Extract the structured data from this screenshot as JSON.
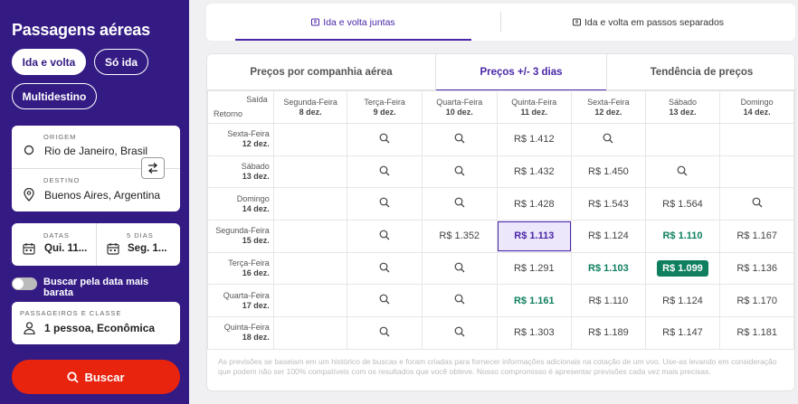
{
  "sidebar": {
    "title": "Passagens aéreas",
    "trip_types": [
      "Ida e volta",
      "Só ida",
      "Multidestino"
    ],
    "origin_label": "ORIGEM",
    "origin_value": "Rio de Janeiro, Brasil",
    "destination_label": "DESTINO",
    "destination_value": "Buenos Aires, Argentina",
    "dates_label": "DATAS",
    "dates_value": "Qui. 11...",
    "days_label": "5 DIAS",
    "days_value": "Seg. 1...",
    "flexible_label": "Buscar pela data mais barata",
    "passengers_label": "PASSAGEIROS E CLASSE",
    "passengers_value": "1 pessoa, Econômica",
    "search_button": "Buscar",
    "accent_color": "#341b84",
    "search_color": "#e8240f"
  },
  "top_tabs": [
    {
      "label": "Ida e volta juntas",
      "icon": "ticket-icon",
      "active": true
    },
    {
      "label": "Ida e volta em passos separados",
      "icon": "ticket-icon",
      "active": false
    }
  ],
  "sub_tabs": [
    {
      "label": "Preços por companhia aérea",
      "active": false
    },
    {
      "label": "Preços +/- 3 dias",
      "active": true
    },
    {
      "label": "Tendência de preços",
      "active": false
    }
  ],
  "grid": {
    "corner_top": "Saída",
    "corner_bottom": "Retorno",
    "columns": [
      {
        "day": "Segunda-Feira",
        "date": "8 dez."
      },
      {
        "day": "Terça-Feira",
        "date": "9 dez."
      },
      {
        "day": "Quarta-Feira",
        "date": "10 dez."
      },
      {
        "day": "Quinta-Feira",
        "date": "11 dez."
      },
      {
        "day": "Sexta-Feira",
        "date": "12 dez."
      },
      {
        "day": "Sábado",
        "date": "13 dez."
      },
      {
        "day": "Domingo",
        "date": "14 dez."
      }
    ],
    "rows": [
      {
        "day": "Sexta-Feira",
        "date": "12 dez.",
        "cells": [
          "",
          "search",
          "search",
          "R$ 1.412",
          "search",
          "",
          ""
        ]
      },
      {
        "day": "Sábado",
        "date": "13 dez.",
        "cells": [
          "",
          "search",
          "search",
          "R$ 1.432",
          "R$ 1.450",
          "search",
          ""
        ]
      },
      {
        "day": "Domingo",
        "date": "14 dez.",
        "cells": [
          "",
          "search",
          "search",
          "R$ 1.428",
          "R$ 1.543",
          "R$ 1.564",
          "search"
        ]
      },
      {
        "day": "Segunda-Feira",
        "date": "15 dez.",
        "cells": [
          "",
          "search",
          "R$ 1.352",
          "R$ 1.113",
          "R$ 1.124",
          "R$ 1.110",
          "R$ 1.167"
        ]
      },
      {
        "day": "Terça-Feira",
        "date": "16 dez.",
        "cells": [
          "",
          "search",
          "search",
          "R$ 1.291",
          "R$ 1.103",
          "R$ 1.099",
          "R$ 1.136"
        ]
      },
      {
        "day": "Quarta-Feira",
        "date": "17 dez.",
        "cells": [
          "",
          "search",
          "search",
          "R$ 1.161",
          "R$ 1.110",
          "R$ 1.124",
          "R$ 1.170"
        ]
      },
      {
        "day": "Quinta-Feira",
        "date": "18 dez.",
        "cells": [
          "",
          "search",
          "search",
          "R$ 1.303",
          "R$ 1.189",
          "R$ 1.147",
          "R$ 1.181"
        ]
      }
    ],
    "selected": {
      "row": 3,
      "col": 3
    },
    "cheapest": {
      "row": 4,
      "col": 5
    },
    "green_cells": [
      [
        3,
        5
      ],
      [
        4,
        4
      ],
      [
        5,
        3
      ]
    ],
    "green_color": "#0f7f5f"
  },
  "footnote": "As previsões se baseiam em um histórico de buscas e foram criadas para fornecer informações adicionais na cotação de um voo. Use-as levando em consideração que podem não ser 100% compatíveis com os resultados que você obteve. Nosso compromisso é apresentar previsões cada vez mais precisas."
}
